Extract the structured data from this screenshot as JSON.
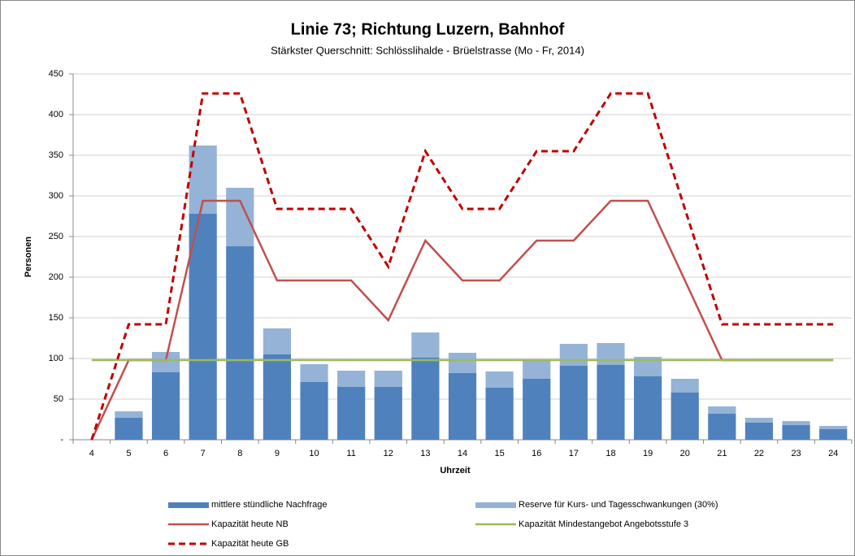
{
  "chart_data": {
    "type": "bar",
    "title": "Linie 73; Richtung Luzern, Bahnhof",
    "subtitle": "Stärkster Querschnitt: Schlösslihalde - Brüelstrasse (Mo - Fr, 2014)",
    "x_label": "Uhrzeit",
    "y_label": "Personen",
    "categories": [
      "4",
      "5",
      "6",
      "7",
      "8",
      "9",
      "10",
      "11",
      "12",
      "13",
      "14",
      "15",
      "16",
      "17",
      "18",
      "19",
      "20",
      "21",
      "22",
      "23",
      "24"
    ],
    "ylim": [
      0,
      450
    ],
    "yticks": [
      {
        "value": 0,
        "label": "-"
      },
      50,
      100,
      150,
      200,
      250,
      300,
      350,
      400,
      450
    ],
    "grid": true,
    "stacked": true,
    "legend": "bottom",
    "series": [
      {
        "name": "mittlere stündliche Nachfrage",
        "type": "bar",
        "color": "#4f81bd",
        "values": [
          0,
          27,
          83,
          278,
          238,
          105,
          71,
          65,
          65,
          101,
          82,
          64,
          75,
          91,
          92,
          78,
          58,
          32,
          21,
          18,
          13
        ]
      },
      {
        "name": "Reserve für Kurs- und Tagesschwankungen (30%)",
        "type": "bar",
        "color": "#95b3d7",
        "values": [
          0,
          8,
          25,
          84,
          72,
          32,
          22,
          20,
          20,
          31,
          25,
          20,
          23,
          27,
          27,
          24,
          17,
          9,
          6,
          5,
          4
        ]
      },
      {
        "name": "Kapazität heute NB",
        "type": "line",
        "color": "#c0504d",
        "values": [
          0,
          98,
          98,
          294,
          294,
          196,
          196,
          196,
          147,
          245,
          196,
          196,
          245,
          245,
          294,
          294,
          196,
          98,
          98,
          98,
          98
        ]
      },
      {
        "name": "Kapazität Mindestangebot Angebotsstufe 3",
        "type": "line",
        "color": "#9bbb59",
        "values": [
          98,
          98,
          98,
          98,
          98,
          98,
          98,
          98,
          98,
          98,
          98,
          98,
          98,
          98,
          98,
          98,
          98,
          98,
          98,
          98,
          98
        ]
      },
      {
        "name": "Kapazität heute GB",
        "type": "line",
        "color": "#c00000",
        "dashed": true,
        "values": [
          0,
          142,
          142,
          426,
          426,
          284,
          284,
          284,
          213,
          355,
          284,
          284,
          355,
          355,
          426,
          426,
          284,
          142,
          142,
          142,
          142
        ]
      }
    ]
  }
}
